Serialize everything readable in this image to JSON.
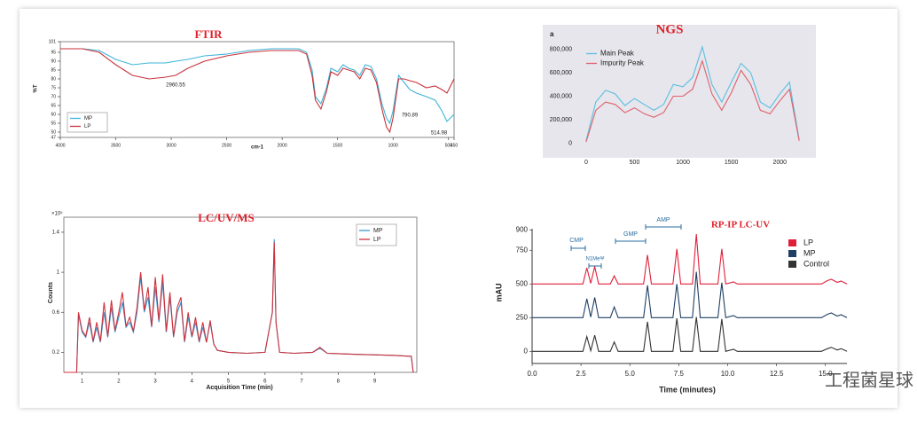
{
  "chart_data": [
    {
      "type": "line",
      "title": "FTIR",
      "xlabel": "cm-1",
      "ylabel": "%T",
      "xlim": [
        4000,
        450
      ],
      "ylim": [
        47,
        101
      ],
      "xticks": [
        4000,
        3500,
        3000,
        2500,
        2000,
        1500,
        1000,
        500,
        450
      ],
      "yticks": [
        47,
        50,
        55,
        60,
        65,
        70,
        75,
        80,
        85,
        90,
        95,
        101
      ],
      "x": [
        4000,
        3800,
        3650,
        3500,
        3350,
        3200,
        3050,
        2960,
        2850,
        2700,
        2500,
        2300,
        2100,
        2000,
        1850,
        1780,
        1730,
        1700,
        1650,
        1600,
        1560,
        1500,
        1450,
        1400,
        1350,
        1300,
        1250,
        1200,
        1150,
        1100,
        1060,
        1030,
        1000,
        950,
        900,
        850,
        790,
        700,
        620,
        560,
        514,
        450
      ],
      "series": [
        {
          "name": "MP",
          "color": "#3cb4d8",
          "values": [
            97,
            97,
            96,
            91,
            88,
            89,
            89,
            90,
            91,
            93,
            94,
            96,
            97,
            97,
            97,
            95,
            85,
            70,
            66,
            75,
            86,
            84,
            88,
            86,
            85,
            82,
            88,
            87,
            80,
            66,
            58,
            55,
            62,
            82,
            78,
            74,
            72,
            70,
            68,
            62,
            56,
            60
          ]
        },
        {
          "name": "LP",
          "color": "#c8323c",
          "values": [
            97,
            97,
            95,
            88,
            82,
            80,
            81,
            82,
            86,
            90,
            93,
            95,
            96,
            96,
            96,
            94,
            82,
            68,
            63,
            73,
            84,
            82,
            86,
            85,
            84,
            80,
            86,
            85,
            78,
            63,
            53,
            50,
            58,
            80,
            80,
            79,
            78,
            75,
            76,
            74,
            72,
            80
          ]
        }
      ],
      "annotations": [
        "2960.55",
        "790.89",
        "514.98"
      ],
      "legend": "lower left",
      "grid": false
    },
    {
      "type": "line",
      "title": "NGS",
      "panel_label": "a",
      "xlim": [
        -100,
        2300
      ],
      "ylim": [
        -80000,
        880000
      ],
      "xticks": [
        0,
        500,
        1000,
        1500,
        2000
      ],
      "yticks": [
        0,
        {
          "value": 200000,
          "label": "200,000"
        },
        {
          "value": 400000,
          "label": "400,000"
        },
        {
          "value": 600000,
          "label": "600,000"
        },
        {
          "value": 800000,
          "label": "800,000"
        }
      ],
      "x": [
        0,
        100,
        200,
        300,
        400,
        500,
        600,
        700,
        800,
        900,
        1000,
        1100,
        1200,
        1300,
        1400,
        1500,
        1600,
        1700,
        1800,
        1900,
        2000,
        2100,
        2200
      ],
      "series": [
        {
          "name": "Main Peak",
          "color": "#5bbfe0",
          "values": [
            20000,
            350000,
            450000,
            420000,
            320000,
            380000,
            330000,
            280000,
            330000,
            500000,
            480000,
            560000,
            820000,
            500000,
            350000,
            520000,
            680000,
            600000,
            350000,
            300000,
            420000,
            520000,
            30000
          ]
        },
        {
          "name": "Impurity Peak",
          "color": "#e0606c",
          "values": [
            10000,
            280000,
            350000,
            330000,
            260000,
            300000,
            250000,
            220000,
            260000,
            400000,
            400000,
            460000,
            700000,
            420000,
            280000,
            430000,
            620000,
            500000,
            280000,
            250000,
            360000,
            460000,
            20000
          ]
        }
      ],
      "background": "#e6e6ec",
      "legend": "upper left",
      "grid": false
    },
    {
      "type": "line",
      "title": "LC/UV/MS",
      "xlabel": "Acquisition Time (min)",
      "ylabel": "Counts",
      "y_scale_label": "×10⁵",
      "xlim": [
        0.5,
        10.15
      ],
      "ylim": [
        0,
        1.55
      ],
      "xticks": [
        1,
        2,
        3,
        4,
        5,
        6,
        7,
        8,
        9
      ],
      "yticks": [
        0.2,
        0.6,
        1,
        1.4
      ],
      "x": [
        0.5,
        0.85,
        0.9,
        1.0,
        1.1,
        1.2,
        1.3,
        1.4,
        1.5,
        1.6,
        1.7,
        1.8,
        1.9,
        2.0,
        2.1,
        2.2,
        2.3,
        2.4,
        2.5,
        2.6,
        2.7,
        2.8,
        2.9,
        3.0,
        3.1,
        3.2,
        3.3,
        3.4,
        3.5,
        3.6,
        3.7,
        3.8,
        3.9,
        4.0,
        4.1,
        4.2,
        4.3,
        4.4,
        4.5,
        4.6,
        4.7,
        5.0,
        5.5,
        6.0,
        6.2,
        6.25,
        6.3,
        6.4,
        6.8,
        7.3,
        7.5,
        7.7,
        8.5,
        9.5,
        10.0,
        10.05
      ],
      "series": [
        {
          "name": "MP",
          "color": "#3a9bd5",
          "values": [
            0,
            0,
            0.58,
            0.4,
            0.35,
            0.5,
            0.3,
            0.45,
            0.3,
            0.6,
            0.35,
            0.65,
            0.4,
            0.55,
            0.7,
            0.45,
            0.5,
            0.4,
            0.6,
            0.95,
            0.6,
            0.75,
            0.45,
            0.85,
            0.5,
            0.9,
            0.4,
            0.75,
            0.35,
            0.6,
            0.7,
            0.3,
            0.55,
            0.35,
            0.5,
            0.3,
            0.45,
            0.3,
            0.5,
            0.28,
            0.22,
            0.2,
            0.19,
            0.2,
            0.6,
            1.33,
            0.5,
            0.2,
            0.19,
            0.2,
            0.24,
            0.19,
            0.18,
            0.17,
            0.16,
            0
          ]
        },
        {
          "name": "LP",
          "color": "#d0303a",
          "values": [
            0,
            0,
            0.6,
            0.42,
            0.36,
            0.55,
            0.31,
            0.5,
            0.31,
            0.7,
            0.36,
            0.72,
            0.42,
            0.6,
            0.8,
            0.46,
            0.55,
            0.41,
            0.65,
            1.0,
            0.62,
            0.85,
            0.46,
            0.95,
            0.52,
            0.98,
            0.41,
            0.8,
            0.36,
            0.65,
            0.75,
            0.31,
            0.6,
            0.36,
            0.55,
            0.31,
            0.5,
            0.3,
            0.52,
            0.28,
            0.22,
            0.2,
            0.19,
            0.2,
            0.6,
            1.3,
            0.5,
            0.2,
            0.19,
            0.2,
            0.25,
            0.19,
            0.18,
            0.17,
            0.16,
            0
          ]
        }
      ],
      "legend": "upper right",
      "grid": false
    },
    {
      "type": "line",
      "title": "RP-IP LC-UV",
      "xlabel": "Time (minutes)",
      "ylabel": "mAU",
      "xlim": [
        0,
        16.1
      ],
      "ylim": [
        -90,
        910
      ],
      "xticks": [
        {
          "value": 0,
          "label": "0.0"
        },
        2.5,
        {
          "value": 5,
          "label": "5.0"
        },
        7.5,
        {
          "value": 10,
          "label": "10.0"
        },
        12.5,
        {
          "value": 15,
          "label": "15.0"
        }
      ],
      "yticks": [
        0,
        250,
        500,
        750,
        900
      ],
      "x": [
        0,
        2.6,
        2.8,
        3.0,
        3.2,
        3.4,
        4.0,
        4.2,
        4.4,
        5.7,
        5.9,
        6.1,
        7.2,
        7.4,
        7.6,
        8.2,
        8.4,
        8.6,
        9.5,
        9.7,
        9.9,
        10.3,
        10.5,
        14.8,
        15.1,
        15.3,
        15.6,
        15.8,
        16.1
      ],
      "series": [
        {
          "name": "LP",
          "color": "#e0203a",
          "values": [
            500,
            500,
            620,
            505,
            630,
            500,
            500,
            560,
            500,
            500,
            715,
            500,
            500,
            760,
            500,
            500,
            870,
            500,
            500,
            760,
            500,
            515,
            500,
            500,
            525,
            535,
            512,
            522,
            500
          ]
        },
        {
          "name": "MP",
          "color": "#1f3f63",
          "values": [
            250,
            250,
            390,
            255,
            400,
            250,
            250,
            330,
            250,
            250,
            490,
            250,
            250,
            500,
            250,
            250,
            590,
            250,
            250,
            510,
            250,
            265,
            250,
            250,
            275,
            285,
            262,
            272,
            250
          ]
        },
        {
          "name": "Control",
          "color": "#333333",
          "values": [
            0,
            0,
            110,
            5,
            120,
            0,
            0,
            70,
            0,
            0,
            220,
            0,
            0,
            245,
            0,
            0,
            255,
            0,
            0,
            240,
            0,
            15,
            0,
            0,
            20,
            30,
            10,
            20,
            0
          ]
        }
      ],
      "annotations": [
        "CMP",
        "N1MeΨ",
        "GMP",
        "AMP"
      ],
      "legend": "upper right",
      "grid": false
    }
  ],
  "watermark": "工程菌星球"
}
